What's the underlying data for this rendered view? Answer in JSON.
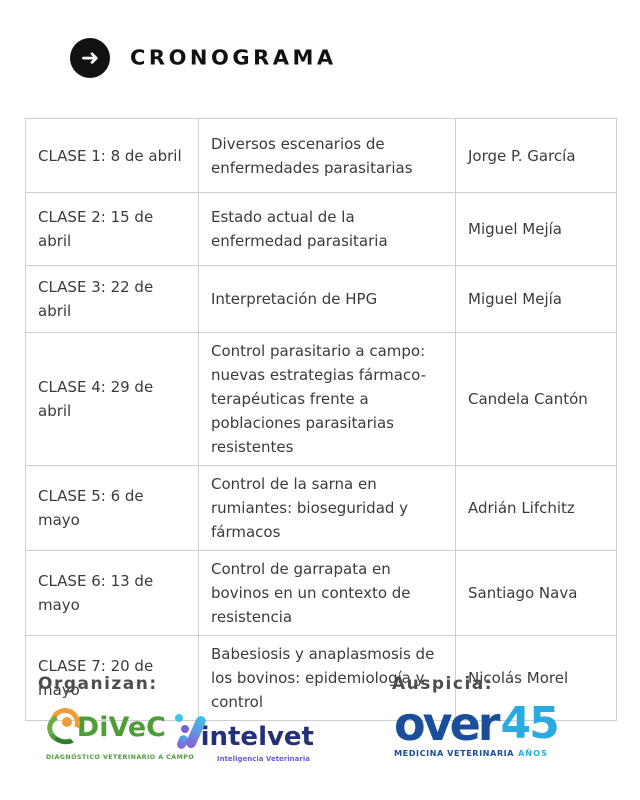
{
  "header": {
    "title": "CRONOGRAMA",
    "arrow_icon": "➜"
  },
  "table": {
    "rows": [
      {
        "date": "CLASE 1: 8 de abril",
        "topic": "Diversos escenarios de enfermedades parasitarias",
        "speaker": "Jorge P. García"
      },
      {
        "date": "CLASE 2: 15 de abril",
        "topic": "Estado actual de la enfermedad parasitaria",
        "speaker": "Miguel Mejía"
      },
      {
        "date": "CLASE 3: 22 de abril",
        "topic": "Interpretación de HPG",
        "speaker": "Miguel Mejía"
      },
      {
        "date": "CLASE 4: 29 de abril",
        "topic": "Control parasitario a campo: nuevas estrategias fármaco-terapéuticas frente a poblaciones parasitarias resistentes",
        "speaker": "Candela Cantón"
      },
      {
        "date": "CLASE 5: 6 de mayo",
        "topic": "Control de la sarna en rumiantes: bioseguridad y fármacos",
        "speaker": "Adrián Lifchitz"
      },
      {
        "date": "CLASE 6: 13 de mayo",
        "topic": "Control de garrapata en bovinos en un contexto de resistencia",
        "speaker": "Santiago Nava"
      },
      {
        "date": "CLASE 7: 20 de mayo",
        "topic": "Babesiosis y anaplasmosis de los bovinos: epidemiología y control",
        "speaker": "Nicolás Morel"
      }
    ]
  },
  "footer": {
    "organizers_label": "Organizan:",
    "sponsor_label": "Auspicia:",
    "divec": {
      "name": "DiVeC",
      "tagline": "DIAGNÓSTICO VETERINARIO A CAMPO"
    },
    "intelvet": {
      "name": "intelvet",
      "tagline": "Inteligencia Veterinaria"
    },
    "over": {
      "name": "over",
      "number": "45",
      "tagline": "MEDICINA VETERINARIA",
      "anos": "AÑOS"
    }
  },
  "colors": {
    "text": "#3b3b3b",
    "table_border": "#cfcfcf",
    "header_black": "#111111",
    "divec_green": "#4f9d37",
    "divec_orange": "#f29c38",
    "intelvet_navy": "#23307a",
    "intelvet_purple": "#6a5fd0",
    "intelvet_cyan": "#3ec6e8",
    "over_navy": "#1b4e9a",
    "over_lightblue": "#29abe2"
  }
}
